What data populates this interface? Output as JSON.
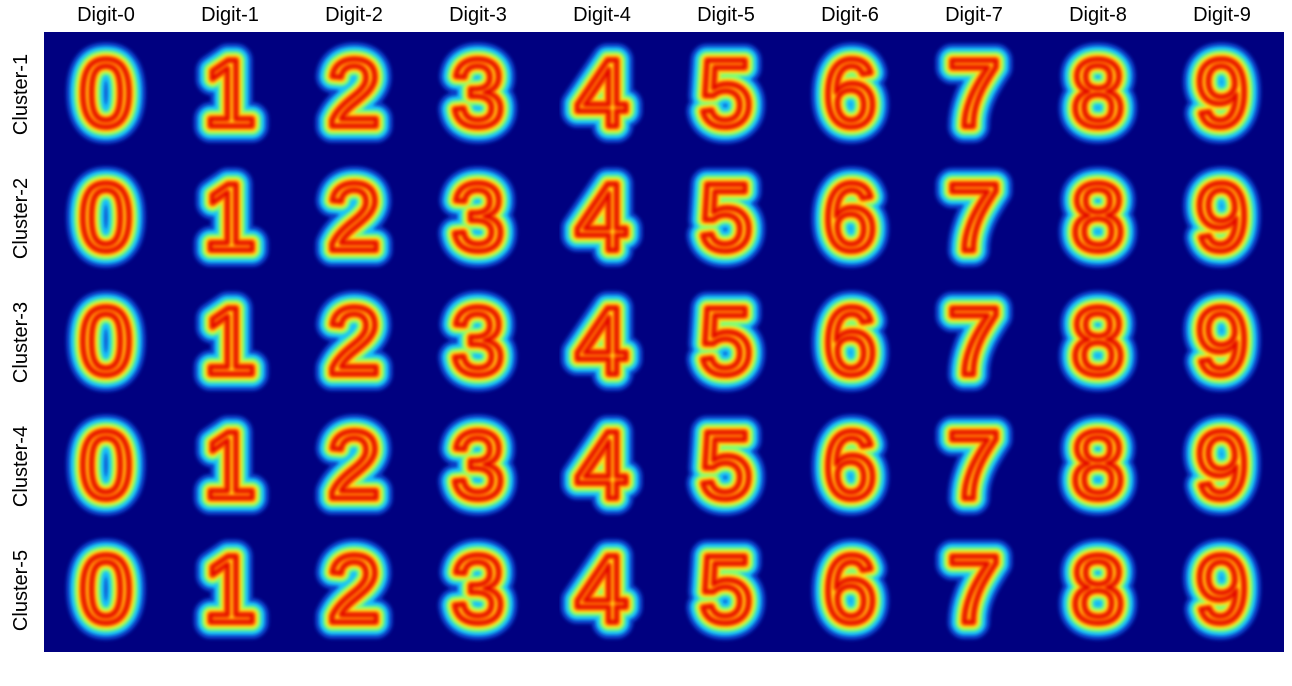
{
  "chart_data": {
    "type": "heatmap",
    "title": "",
    "columns": [
      "Digit-0",
      "Digit-1",
      "Digit-2",
      "Digit-3",
      "Digit-4",
      "Digit-5",
      "Digit-6",
      "Digit-7",
      "Digit-8",
      "Digit-9"
    ],
    "rows": [
      "Cluster-1",
      "Cluster-2",
      "Cluster-3",
      "Cluster-4",
      "Cluster-5"
    ],
    "cells": [
      [
        0,
        1,
        2,
        3,
        4,
        5,
        6,
        7,
        8,
        9
      ],
      [
        0,
        1,
        2,
        3,
        4,
        5,
        6,
        7,
        8,
        9
      ],
      [
        0,
        1,
        2,
        3,
        4,
        5,
        6,
        7,
        8,
        9
      ],
      [
        0,
        1,
        2,
        3,
        4,
        5,
        6,
        7,
        8,
        9
      ],
      [
        0,
        1,
        2,
        3,
        4,
        5,
        6,
        7,
        8,
        9
      ]
    ],
    "colormap": "jet",
    "background_color": "#000080",
    "cell_content": "mean digit image per cluster",
    "grid": false,
    "legend": "none"
  }
}
